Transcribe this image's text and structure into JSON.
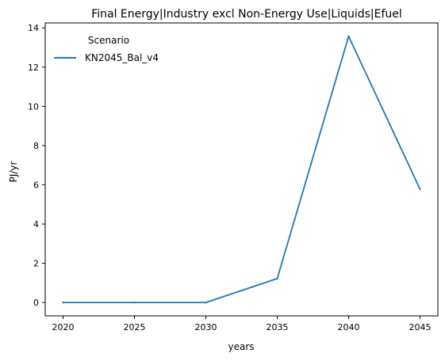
{
  "chart_data": {
    "type": "line",
    "title": "Final Energy|Industry excl Non-Energy Use|Liquids|Efuel",
    "xlabel": "years",
    "ylabel": "PJ/yr",
    "x": [
      2020,
      2025,
      2030,
      2035,
      2040,
      2045
    ],
    "series": [
      {
        "name": "KN2045_Bal_v4",
        "values": [
          0.0,
          0.0,
          0.0,
          1.22,
          13.57,
          5.78
        ],
        "color": "#1f77b4"
      }
    ],
    "xticks": [
      2020,
      2025,
      2030,
      2035,
      2040,
      2045
    ],
    "yticks": [
      0,
      2,
      4,
      6,
      8,
      10,
      12,
      14
    ],
    "xlim": [
      2018.75,
      2046.25
    ],
    "ylim": [
      -0.68,
      14.25
    ],
    "grid": false,
    "legend": {
      "title": "Scenario",
      "placement": "top-left"
    }
  }
}
